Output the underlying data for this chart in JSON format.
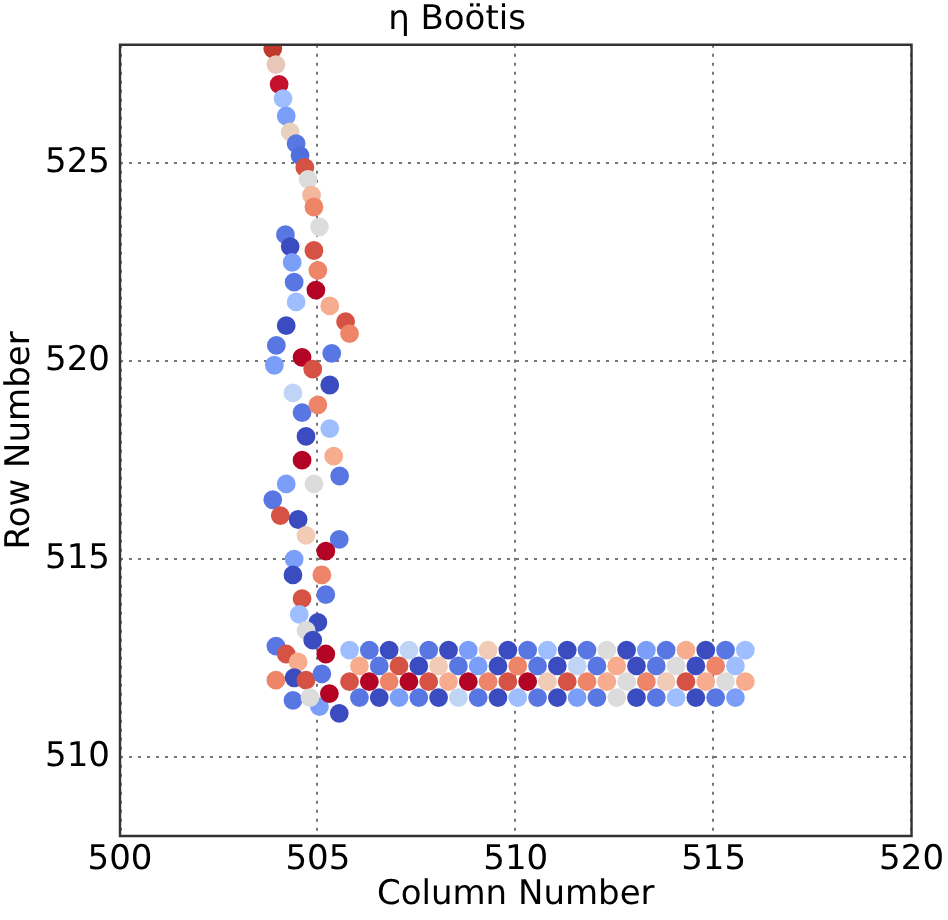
{
  "chart_data": {
    "type": "scatter",
    "title": "η Boötis",
    "xlabel": "Column Number",
    "ylabel": "Row Number",
    "x": [
      503.86,
      503.94,
      504.02,
      504.12,
      504.2,
      504.3,
      504.45,
      504.55,
      504.67,
      504.75,
      504.84,
      504.9,
      504.18,
      505.04,
      504.3,
      504.9,
      504.35,
      505.0,
      504.4,
      504.95,
      504.45,
      505.3,
      505.7,
      505.8,
      504.2,
      503.95,
      503.9,
      504.6,
      504.87,
      505.35,
      505.3,
      504.37,
      504.6,
      505.0,
      504.7,
      505.3,
      505.4,
      504.6,
      505.55,
      504.9,
      504.2,
      503.86,
      504.05,
      504.5,
      504.7,
      505.54,
      505.2,
      504.4,
      504.37,
      505.1,
      505.2,
      504.6,
      504.53,
      505.0,
      504.7,
      503.94,
      504.2,
      504.87,
      504.5,
      505.2,
      503.94,
      504.4,
      504.7,
      505.1,
      504.37,
      505.04,
      505.54,
      505.29,
      504.8,
      505.8,
      506.3,
      506.8,
      507.3,
      507.8,
      508.3,
      508.8,
      509.3,
      509.8,
      510.3,
      510.8,
      511.3,
      511.8,
      512.3,
      512.8,
      513.3,
      513.8,
      514.3,
      514.8,
      515.3,
      515.8,
      506.05,
      506.55,
      507.05,
      507.55,
      508.05,
      508.55,
      509.05,
      509.55,
      510.05,
      510.55,
      511.05,
      511.55,
      512.05,
      512.55,
      513.05,
      513.55,
      514.05,
      514.55,
      515.05,
      515.55,
      505.8,
      506.3,
      506.8,
      507.3,
      507.8,
      508.3,
      508.8,
      509.3,
      509.8,
      510.3,
      510.8,
      511.3,
      511.8,
      512.3,
      512.8,
      513.3,
      513.8,
      514.3,
      514.8,
      515.3,
      515.8,
      506.05,
      506.55,
      507.05,
      507.55,
      508.05,
      508.55,
      509.05,
      509.55,
      510.05,
      510.55,
      511.05,
      511.55,
      512.05,
      512.55,
      513.05,
      513.55,
      514.05,
      514.55,
      515.05,
      515.55
    ],
    "values": [
      527.9,
      527.5,
      527.0,
      526.64,
      526.2,
      525.8,
      525.5,
      525.2,
      524.9,
      524.6,
      524.2,
      523.9,
      523.2,
      523.4,
      522.9,
      522.8,
      522.5,
      522.3,
      522.0,
      521.8,
      521.5,
      521.4,
      521.0,
      520.7,
      520.9,
      520.4,
      519.9,
      520.1,
      519.8,
      520.2,
      519.4,
      519.2,
      518.7,
      518.9,
      518.1,
      518.3,
      517.6,
      517.5,
      517.1,
      516.9,
      516.9,
      516.5,
      516.1,
      516.0,
      515.6,
      515.5,
      515.2,
      515.0,
      514.6,
      514.6,
      514.1,
      514.0,
      513.6,
      513.4,
      513.2,
      512.8,
      512.6,
      512.95,
      512.4,
      512.6,
      511.94,
      512.0,
      511.94,
      512.1,
      511.43,
      511.27,
      511.1,
      511.6,
      511.5,
      512.7,
      512.7,
      512.7,
      512.7,
      512.7,
      512.7,
      512.7,
      512.7,
      512.7,
      512.7,
      512.7,
      512.7,
      512.7,
      512.7,
      512.7,
      512.7,
      512.7,
      512.7,
      512.7,
      512.7,
      512.7,
      512.3,
      512.3,
      512.3,
      512.3,
      512.3,
      512.3,
      512.3,
      512.3,
      512.3,
      512.3,
      512.3,
      512.3,
      512.3,
      512.3,
      512.3,
      512.3,
      512.3,
      512.3,
      512.3,
      512.3,
      511.9,
      511.9,
      511.9,
      511.9,
      511.9,
      511.9,
      511.9,
      511.9,
      511.9,
      511.9,
      511.9,
      511.9,
      511.9,
      511.9,
      511.9,
      511.9,
      511.9,
      511.9,
      511.9,
      511.9,
      511.9,
      511.5,
      511.5,
      511.5,
      511.5,
      511.5,
      511.5,
      511.5,
      511.5,
      511.5,
      511.5,
      511.5,
      511.5,
      511.5,
      511.5,
      511.5,
      511.5,
      511.5,
      511.5,
      511.5,
      511.5
    ],
    "colors": [
      "#c0392b",
      "#e8c6b8",
      "#c3112e",
      "#9ebeff",
      "#7b9ff9",
      "#e9d1bf",
      "#5977e3",
      "#4f6fdc",
      "#d65244",
      "#dddcdc",
      "#f2b79d",
      "#ee8468",
      "#5977e3",
      "#dddcdc",
      "#3b4cc0",
      "#d65244",
      "#7b9ff9",
      "#ee8468",
      "#5977e3",
      "#b40426",
      "#9ebeff",
      "#f7ac8e",
      "#d65244",
      "#ee8468",
      "#3b4cc0",
      "#5977e3",
      "#7b9ff9",
      "#b40426",
      "#d65244",
      "#5977e3",
      "#3b4cc0",
      "#c0d4f5",
      "#5977e3",
      "#ee8468",
      "#3b4cc0",
      "#9ebeff",
      "#f7ac8e",
      "#b40426",
      "#5977e3",
      "#dddcdc",
      "#7b9ff9",
      "#5977e3",
      "#d65244",
      "#3b4cc0",
      "#f2cbb7",
      "#5977e3",
      "#b40426",
      "#7b9ff9",
      "#3b4cc0",
      "#ee8468",
      "#5977e3",
      "#d65244",
      "#9ebeff",
      "#3b4cc0",
      "#dddcdc",
      "#5977e3",
      "#d65244",
      "#3b4cc0",
      "#f7ac8e",
      "#b40426",
      "#ee8468",
      "#3b4cc0",
      "#d65244",
      "#5977e3",
      "#5977e3",
      "#7b9ff9",
      "#3b4cc0",
      "#b40426",
      "#dddcdc",
      "#9ebeff",
      "#5977e3",
      "#3b4cc0",
      "#c0d4f5",
      "#5977e3",
      "#3b4cc0",
      "#7b9ff9",
      "#f2cbb7",
      "#3b4cc0",
      "#5977e3",
      "#9ebeff",
      "#3b4cc0",
      "#5977e3",
      "#dddcdc",
      "#3b4cc0",
      "#7b9ff9",
      "#5977e3",
      "#f7ac8e",
      "#3b4cc0",
      "#5977e3",
      "#9ebeff",
      "#f7ac8e",
      "#5977e3",
      "#d65244",
      "#3b4cc0",
      "#f2cbb7",
      "#5977e3",
      "#7b9ff9",
      "#3b4cc0",
      "#ee8468",
      "#5977e3",
      "#3b4cc0",
      "#c0d4f5",
      "#5977e3",
      "#f7ac8e",
      "#3b4cc0",
      "#5977e3",
      "#dddcdc",
      "#3b4cc0",
      "#ee8468",
      "#9ebeff",
      "#d65244",
      "#b40426",
      "#ee8468",
      "#b40426",
      "#d65244",
      "#f7ac8e",
      "#b40426",
      "#ee8468",
      "#d65244",
      "#b40426",
      "#f2cbb7",
      "#d65244",
      "#ee8468",
      "#f7ac8e",
      "#dddcdc",
      "#ee8468",
      "#f2cbb7",
      "#d65244",
      "#f7ac8e",
      "#dddcdc",
      "#f7ac8e",
      "#5977e3",
      "#3b4cc0",
      "#7b9ff9",
      "#5977e3",
      "#3b4cc0",
      "#c0d4f5",
      "#5977e3",
      "#3b4cc0",
      "#9ebeff",
      "#5977e3",
      "#3b4cc0",
      "#7b9ff9",
      "#5977e3",
      "#dddcdc",
      "#3b4cc0",
      "#5977e3",
      "#9ebeff",
      "#3b4cc0",
      "#5977e3",
      "#7b9ff9"
    ],
    "xlim": [
      500,
      520
    ],
    "ylim": [
      508,
      528
    ],
    "xticks": [
      500,
      505,
      510,
      515,
      520
    ],
    "yticks": [
      510,
      515,
      520,
      525
    ],
    "grid": true,
    "marker": "circle"
  }
}
